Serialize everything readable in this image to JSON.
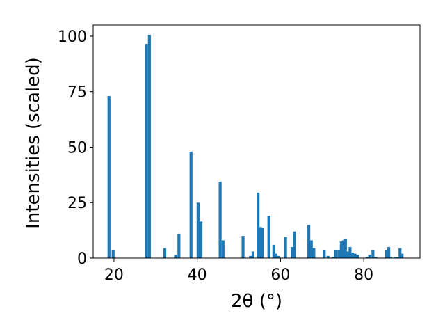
{
  "chart_data": {
    "type": "bar",
    "xlabel": "2θ (°)",
    "ylabel": "Intensities (scaled)",
    "xlim": [
      15,
      93.5
    ],
    "ylim": [
      0,
      105
    ],
    "x_ticks": [
      20,
      40,
      60,
      80
    ],
    "y_ticks": [
      0,
      25,
      50,
      75,
      100
    ],
    "bar_width": 0.7,
    "color": "#1f77b4",
    "grid": false,
    "x": [
      18.8,
      19.8,
      27.8,
      28.5,
      32.2,
      34.8,
      35.6,
      38.5,
      40.2,
      40.9,
      45.5,
      46.2,
      51.0,
      52.8,
      53.4,
      54.6,
      55.2,
      55.6,
      57.2,
      58.4,
      58.9,
      59.4,
      61.2,
      62.8,
      63.3,
      66.8,
      67.4,
      68.0,
      70.5,
      71.4,
      72.6,
      73.2,
      74.0,
      74.6,
      75.1,
      75.6,
      76.1,
      76.7,
      77.3,
      77.9,
      78.5,
      80.8,
      81.4,
      82.2,
      82.9,
      85.5,
      86.0,
      86.5,
      87.6,
      88.1,
      88.7,
      89.2
    ],
    "values": [
      73,
      3.5,
      96.5,
      100.5,
      4.5,
      1.5,
      11,
      48,
      25,
      16.5,
      34.5,
      8,
      10,
      1,
      3,
      29.5,
      14,
      13.5,
      19,
      6,
      2,
      1,
      9.5,
      5,
      12,
      15,
      8,
      4.5,
      3.5,
      1,
      0.5,
      3.5,
      3.5,
      7.5,
      8,
      8.5,
      3,
      5,
      2.5,
      2,
      1.5,
      0.5,
      1.5,
      3.5,
      0.5,
      3.5,
      5,
      0.5,
      0.5,
      0.5,
      4.5,
      2
    ]
  }
}
